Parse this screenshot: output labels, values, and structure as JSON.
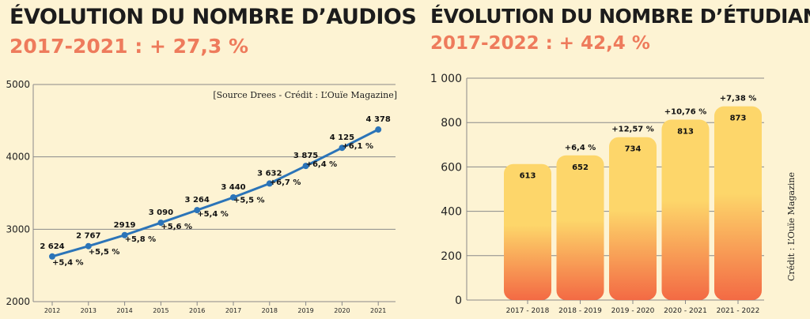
{
  "chart_data": [
    {
      "type": "line",
      "title": "ÉVOLUTION DU NOMBRE D’AUDIOS",
      "subtitle": "2017-2021 : + 27,3 %",
      "source": "[Source Drees - Crédit : L’Ouïe Magazine]",
      "x": [
        "2012",
        "2013",
        "2014",
        "2015",
        "2016",
        "2017",
        "2018",
        "2019",
        "2020",
        "2021"
      ],
      "values": [
        2624,
        2767,
        2919,
        3090,
        3264,
        3440,
        3632,
        3875,
        4125,
        4378
      ],
      "value_labels": [
        "2 624",
        "2 767",
        "2919",
        "3 090",
        "3 264",
        "3 440",
        "3 632",
        "3 875",
        "4 125",
        "4 378"
      ],
      "change_labels": [
        "",
        "+5,4 %",
        "+5,5 %",
        "+5,8 %",
        "+5,6 %",
        "+5,4 %",
        "+5,5 %",
        "+6,7 %",
        "+6,4 %",
        "+6,1 %"
      ],
      "yticks": [
        2000,
        3000,
        4000,
        5000
      ],
      "ylim": [
        2000,
        5000
      ],
      "grid": true,
      "line_color": "#2b74b8"
    },
    {
      "type": "bar",
      "title": "ÉVOLUTION DU NOMBRE D’ÉTUDIANTS",
      "subtitle": "2017-2022 : + 42,4 %",
      "credit": "Crédit : L’Ouïe Magazine",
      "categories": [
        "2017 - 2018",
        "2018 - 2019",
        "2019 - 2020",
        "2020 - 2021",
        "2021 - 2022"
      ],
      "values": [
        613,
        652,
        734,
        813,
        873
      ],
      "value_labels": [
        "613",
        "652",
        "734",
        "813",
        "873"
      ],
      "change_labels": [
        "",
        "+6,4 %",
        "+12,57 %",
        "+10,76 %",
        "+7,38 %"
      ],
      "yticks": [
        0,
        200,
        400,
        600,
        800,
        1000
      ],
      "ytick_labels": [
        "0",
        "200",
        "400",
        "600",
        "800",
        "1 000"
      ],
      "ylim": [
        0,
        1000
      ],
      "grid": true,
      "bar_gradient": [
        "#fdd66a",
        "#f36a44"
      ]
    }
  ]
}
